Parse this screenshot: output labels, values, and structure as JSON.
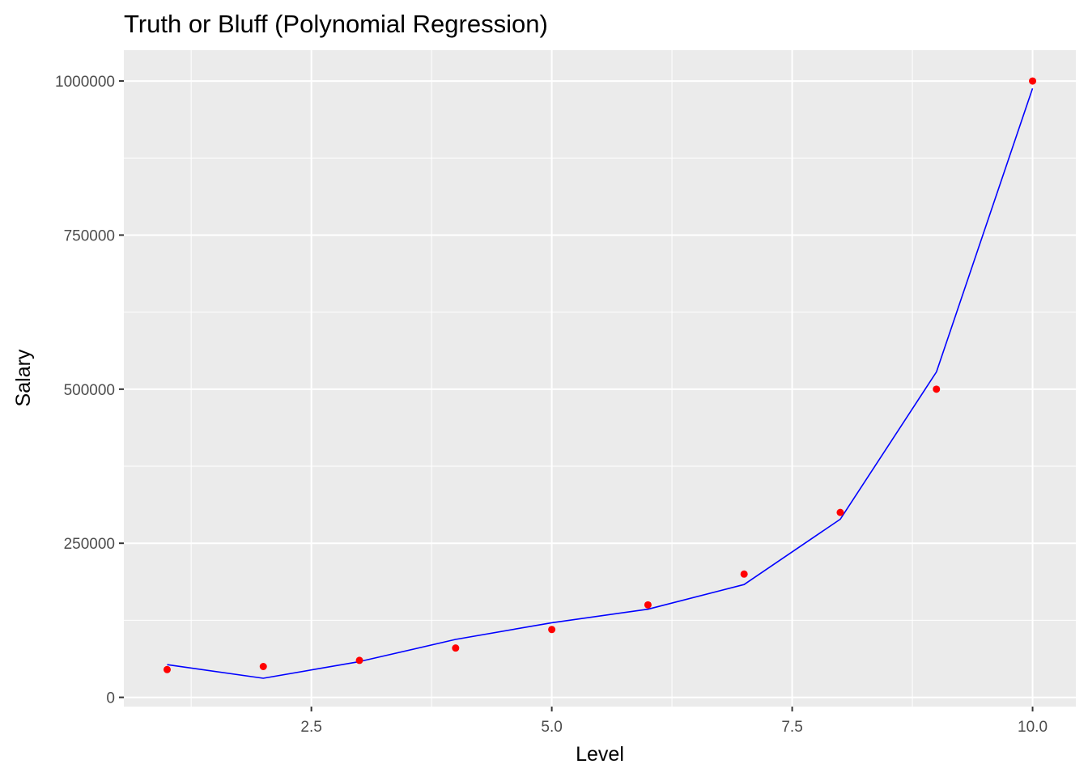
{
  "chart_data": {
    "type": "scatter",
    "title": "Truth or Bluff (Polynomial Regression)",
    "xlabel": "Level",
    "ylabel": "Salary",
    "xlim": [
      0.55,
      10.45
    ],
    "ylim": [
      -15000,
      1050000
    ],
    "x_ticks": [
      2.5,
      5.0,
      7.5,
      10.0
    ],
    "x_tick_labels": [
      "2.5",
      "5.0",
      "7.5",
      "10.0"
    ],
    "y_ticks": [
      0,
      250000,
      500000,
      750000,
      1000000
    ],
    "y_tick_labels": [
      "0",
      "250000",
      "500000",
      "750000",
      "1000000"
    ],
    "grid": true,
    "legend": "none",
    "background_color": "#ebebeb",
    "grid_color": "#ffffff",
    "series": [
      {
        "kind": "points",
        "color": "#ff0000",
        "x": [
          1,
          2,
          3,
          4,
          5,
          6,
          7,
          8,
          9,
          10
        ],
        "y": [
          45000,
          50000,
          60000,
          80000,
          110000,
          150000,
          200000,
          300000,
          500000,
          1000000
        ]
      },
      {
        "kind": "line",
        "color": "#0000ff",
        "x": [
          1,
          2,
          3,
          4,
          5,
          6,
          7,
          8,
          9,
          10
        ],
        "y": [
          53000,
          31000,
          58000,
          94000,
          121000,
          143000,
          183000,
          289000,
          528000,
          988000
        ]
      }
    ]
  }
}
